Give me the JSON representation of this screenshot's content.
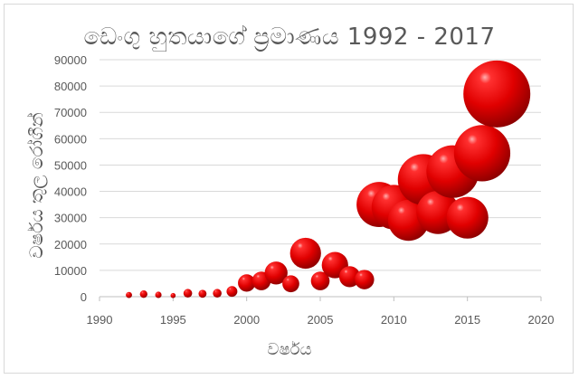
{
  "chart_data": {
    "type": "scatter",
    "title": "ඩෙංගු හුතයාගේ ප්‍රමාණය 1992 - 2017",
    "xlabel": "වර්ෂය",
    "ylabel": "වර්ෂය තුල රෝගීන්",
    "xlim": [
      1990,
      2020
    ],
    "ylim": [
      0,
      90000
    ],
    "xticks": [
      1990,
      1995,
      2000,
      2005,
      2010,
      2015,
      2020
    ],
    "yticks": [
      0,
      10000,
      20000,
      30000,
      40000,
      50000,
      60000,
      70000,
      80000,
      90000
    ],
    "bubble_color": "#e00000",
    "grid": "horizontal",
    "legend": "none",
    "points": [
      {
        "x": 1992,
        "y": 650
      },
      {
        "x": 1993,
        "y": 980
      },
      {
        "x": 1994,
        "y": 700
      },
      {
        "x": 1995,
        "y": 440
      },
      {
        "x": 1996,
        "y": 1300
      },
      {
        "x": 1997,
        "y": 1100
      },
      {
        "x": 1998,
        "y": 1300
      },
      {
        "x": 1999,
        "y": 2000
      },
      {
        "x": 2000,
        "y": 5200
      },
      {
        "x": 2001,
        "y": 6000
      },
      {
        "x": 2002,
        "y": 9000
      },
      {
        "x": 2003,
        "y": 4900
      },
      {
        "x": 2004,
        "y": 16500
      },
      {
        "x": 2005,
        "y": 6000
      },
      {
        "x": 2006,
        "y": 12000
      },
      {
        "x": 2007,
        "y": 7600
      },
      {
        "x": 2008,
        "y": 6500
      },
      {
        "x": 2009,
        "y": 35000
      },
      {
        "x": 2010,
        "y": 34000
      },
      {
        "x": 2011,
        "y": 29000
      },
      {
        "x": 2012,
        "y": 44500
      },
      {
        "x": 2013,
        "y": 32000
      },
      {
        "x": 2014,
        "y": 47500
      },
      {
        "x": 2015,
        "y": 30000
      },
      {
        "x": 2016,
        "y": 54500
      },
      {
        "x": 2017,
        "y": 77000
      }
    ]
  }
}
